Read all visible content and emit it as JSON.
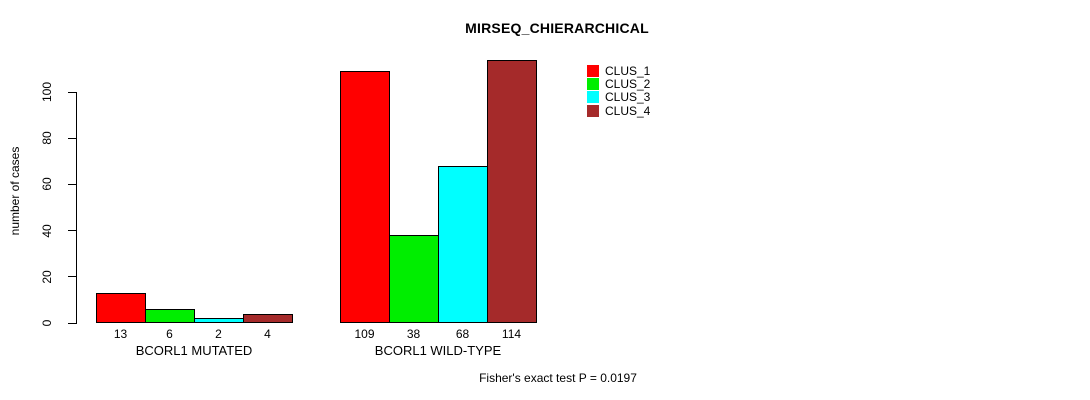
{
  "title": "MIRSEQ_CHIERARCHICAL",
  "ylabel": "number of cases",
  "footer": "Fisher's exact test P = 0.0197",
  "chart_data": {
    "type": "bar",
    "title": "MIRSEQ_CHIERARCHICAL",
    "xlabel": "",
    "ylabel": "number of cases",
    "categories": [
      "BCORL1 MUTATED",
      "BCORL1 WILD-TYPE"
    ],
    "series": [
      {
        "name": "CLUS_1",
        "color": "#ff0000",
        "values": [
          13,
          109
        ]
      },
      {
        "name": "CLUS_2",
        "color": "#00ee00",
        "values": [
          6,
          38
        ]
      },
      {
        "name": "CLUS_3",
        "color": "#00ffff",
        "values": [
          2,
          68
        ]
      },
      {
        "name": "CLUS_4",
        "color": "#a52a2a",
        "values": [
          4,
          114
        ]
      }
    ],
    "bar_value_labels": [
      [
        "13",
        "6",
        "2",
        "4"
      ],
      [
        "109",
        "38",
        "68",
        "114"
      ]
    ],
    "yticks": [
      0,
      20,
      40,
      60,
      80,
      100
    ],
    "ylim": [
      0,
      114
    ],
    "grid": false,
    "legend_position": "top-right",
    "annotation": "Fisher's exact test P = 0.0197"
  }
}
